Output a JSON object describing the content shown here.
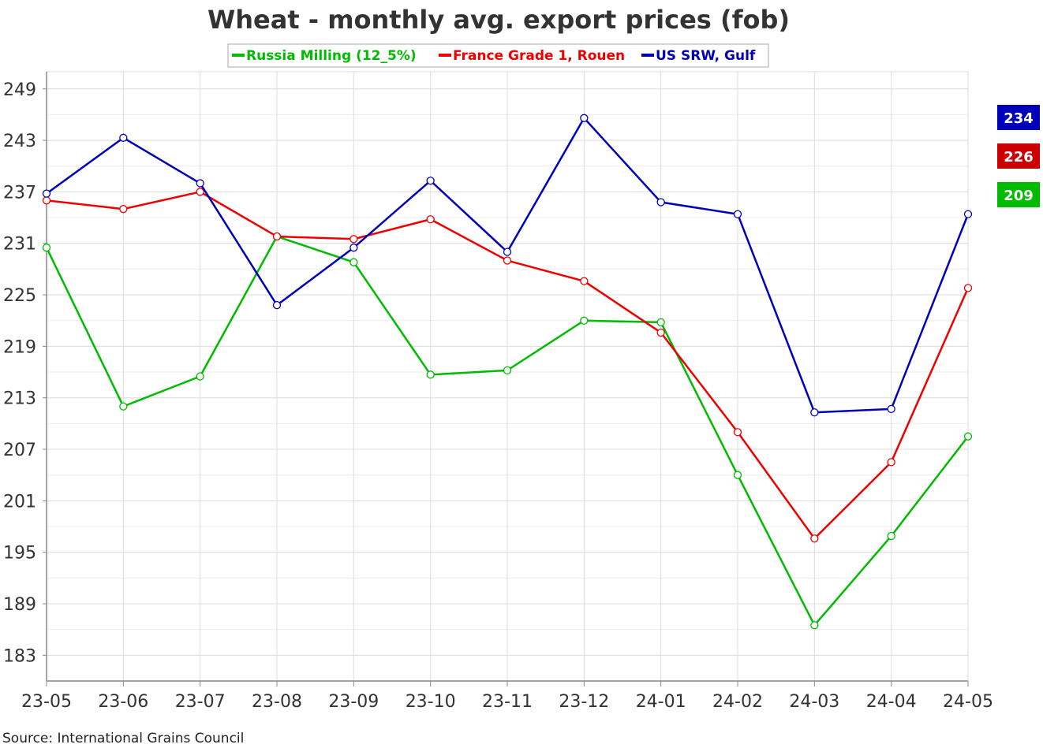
{
  "chart_data": {
    "type": "line",
    "title": "Wheat - monthly avg. export prices (fob)",
    "categories": [
      "23-05",
      "23-06",
      "23-07",
      "23-08",
      "23-09",
      "23-10",
      "23-11",
      "23-12",
      "24-01",
      "24-02",
      "24-03",
      "24-04",
      "24-05"
    ],
    "y_ticks": [
      183,
      189,
      195,
      201,
      207,
      213,
      219,
      225,
      231,
      237,
      243,
      249
    ],
    "ylim": [
      180,
      251
    ],
    "grid": true,
    "legend_position": "top",
    "series": [
      {
        "name": "Russia Milling (12_5%)",
        "color": "#00bb00",
        "values": [
          230.5,
          212,
          215.5,
          231.8,
          228.8,
          215.7,
          216.2,
          222,
          221.8,
          204,
          186.5,
          196.9,
          208.5
        ],
        "last_label": "209"
      },
      {
        "name": "France Grade 1, Rouen",
        "color": "#ee0000",
        "values": [
          236,
          235,
          237,
          231.8,
          231.5,
          233.8,
          229,
          226.6,
          220.6,
          209,
          196.6,
          205.5,
          225.8
        ],
        "last_label": "226"
      },
      {
        "name": "US SRW, Gulf",
        "color": "#0000bb",
        "values": [
          236.8,
          243.3,
          238,
          223.8,
          230.5,
          238.3,
          230,
          245.6,
          235.8,
          234.4,
          211.3,
          211.7,
          234.4
        ],
        "last_label": "234"
      }
    ],
    "badge_colors": [
      "#0000bb",
      "#cc0000",
      "#00bb00"
    ],
    "source": "Source: International Grains Council"
  }
}
